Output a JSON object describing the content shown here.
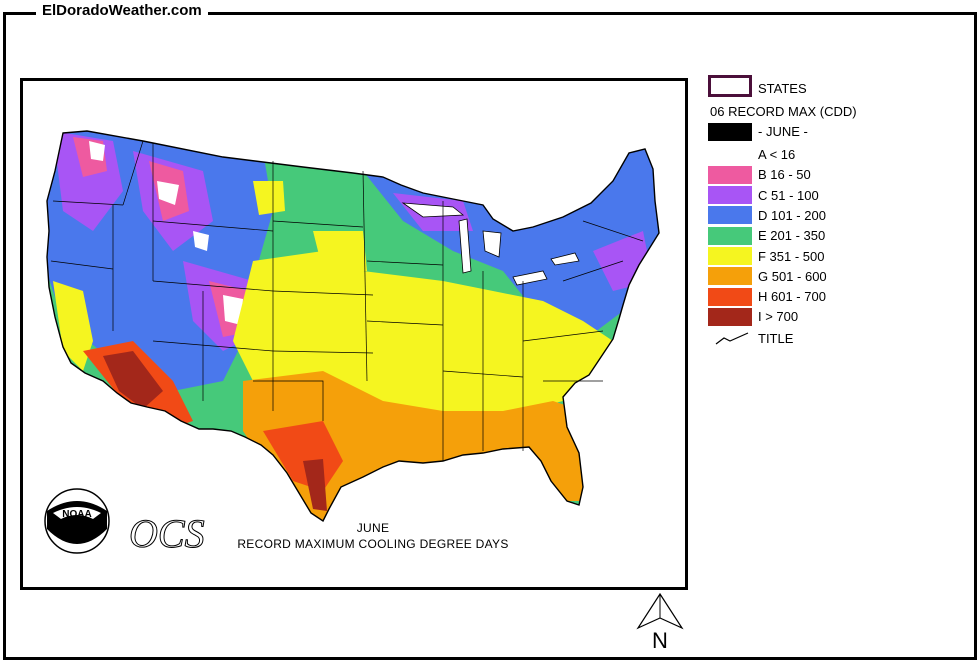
{
  "site": {
    "label": "ElDoradoWeather.com"
  },
  "map": {
    "caption_line1": "JUNE",
    "caption_line2": "RECORD MAXIMUM COOLING DEGREE DAYS",
    "logo_text": "NOAA",
    "ocs_text": "OCS"
  },
  "legend": {
    "states_label": "STATES",
    "heading": "06 RECORD MAX (CDD)",
    "month_label": "- JUNE -",
    "title_label": "TITLE",
    "items": [
      {
        "label": "A < 16",
        "color": "#ffffff"
      },
      {
        "label": "B 16 - 50",
        "color": "#ee5aa0"
      },
      {
        "label": "C 51 - 100",
        "color": "#a855f5"
      },
      {
        "label": "D 101 - 200",
        "color": "#4a78ec"
      },
      {
        "label": "E 201 - 350",
        "color": "#46c97a"
      },
      {
        "label": "F 351 - 500",
        "color": "#f5f520"
      },
      {
        "label": "G 501 - 600",
        "color": "#f5a00a"
      },
      {
        "label": "H 601 - 700",
        "color": "#f14a16"
      },
      {
        "label": "I > 700",
        "color": "#a3271a"
      }
    ]
  },
  "compass": {
    "label": "N"
  }
}
